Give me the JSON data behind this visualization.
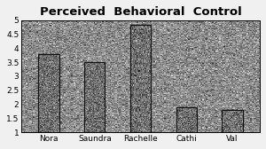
{
  "title": "Perceived  Behavioral  Control",
  "categories": [
    "Nora",
    "Saundra",
    "Rachelle",
    "Cathi",
    "Val"
  ],
  "values": [
    3.8,
    3.5,
    4.83,
    1.9,
    1.8
  ],
  "ylim": [
    1,
    5
  ],
  "yticks": [
    1,
    1.5,
    2,
    2.5,
    3,
    3.5,
    4,
    4.5,
    5
  ],
  "bar_color": "#8a8a8a",
  "bar_edge_color": "#111111",
  "plot_bg_color": "#b8b8b8",
  "figure_bg": "#d8d8d8",
  "outer_bg": "#f0f0f0",
  "title_fontsize": 9.5,
  "tick_fontsize": 6.5,
  "bar_width": 0.45,
  "grid_color": "#555555",
  "grid_alpha": 0.4
}
